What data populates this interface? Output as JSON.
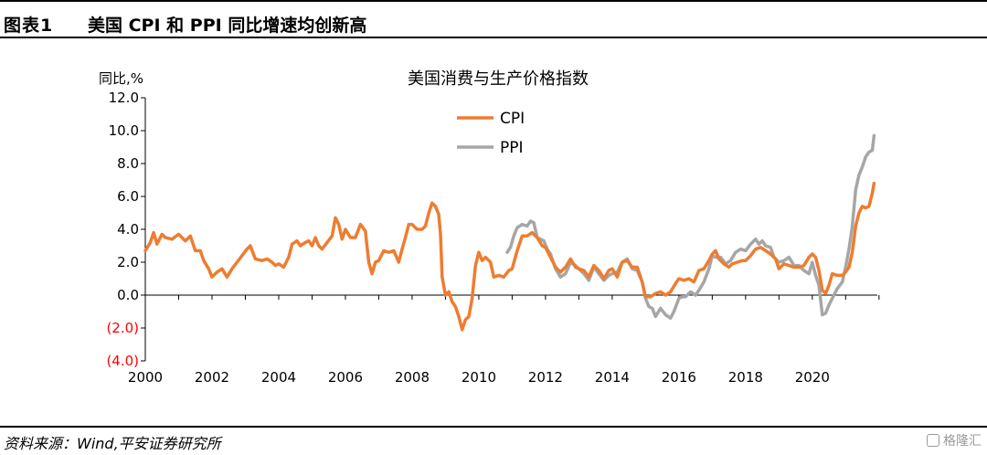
{
  "header": {
    "figure_label": "图表1",
    "title": "美国 CPI 和 PPI 同比增速均创新高"
  },
  "footer": {
    "source": "资料来源：Wind,平安证券研究所",
    "watermark": "格隆汇"
  },
  "colors": {
    "cpi": "#ED7D31",
    "ppi": "#A6A6A6",
    "negative_label": "#FF0000"
  },
  "chart_data": {
    "type": "line",
    "title": "美国消费与生产价格指数",
    "ylabel": "同比,%",
    "xlabel": "",
    "xlim": [
      2000,
      2021.95
    ],
    "ylim": [
      -4,
      12
    ],
    "y_ticks": [
      {
        "value": 12,
        "label": "12.0"
      },
      {
        "value": 10,
        "label": "10.0"
      },
      {
        "value": 8,
        "label": "8.0"
      },
      {
        "value": 6,
        "label": "6.0"
      },
      {
        "value": 4,
        "label": "4.0"
      },
      {
        "value": 2,
        "label": "2.0"
      },
      {
        "value": 0,
        "label": "0.0"
      },
      {
        "value": -2,
        "label": "(2.0)"
      },
      {
        "value": -4,
        "label": "(4.0)"
      }
    ],
    "x_ticks": [
      "2000",
      "2002",
      "2004",
      "2006",
      "2008",
      "2010",
      "2012",
      "2014",
      "2016",
      "2018",
      "2020"
    ],
    "legend_position": "top-center",
    "grid": false,
    "series": [
      {
        "name": "CPI",
        "points": [
          [
            2000.0,
            2.7
          ],
          [
            2000.15,
            3.2
          ],
          [
            2000.25,
            3.8
          ],
          [
            2000.35,
            3.1
          ],
          [
            2000.5,
            3.7
          ],
          [
            2000.6,
            3.5
          ],
          [
            2000.8,
            3.4
          ],
          [
            2001.0,
            3.7
          ],
          [
            2001.2,
            3.3
          ],
          [
            2001.35,
            3.6
          ],
          [
            2001.5,
            2.7
          ],
          [
            2001.65,
            2.7
          ],
          [
            2001.75,
            2.1
          ],
          [
            2001.9,
            1.6
          ],
          [
            2002.0,
            1.1
          ],
          [
            2002.15,
            1.4
          ],
          [
            2002.3,
            1.6
          ],
          [
            2002.45,
            1.1
          ],
          [
            2002.6,
            1.6
          ],
          [
            2002.75,
            2.0
          ],
          [
            2002.9,
            2.4
          ],
          [
            2003.05,
            2.8
          ],
          [
            2003.15,
            3.0
          ],
          [
            2003.3,
            2.2
          ],
          [
            2003.5,
            2.1
          ],
          [
            2003.65,
            2.2
          ],
          [
            2003.8,
            2.0
          ],
          [
            2003.9,
            1.8
          ],
          [
            2004.0,
            1.9
          ],
          [
            2004.15,
            1.7
          ],
          [
            2004.3,
            2.3
          ],
          [
            2004.4,
            3.1
          ],
          [
            2004.55,
            3.3
          ],
          [
            2004.65,
            3.0
          ],
          [
            2004.8,
            3.2
          ],
          [
            2004.9,
            3.3
          ],
          [
            2005.0,
            3.0
          ],
          [
            2005.1,
            3.5
          ],
          [
            2005.2,
            3.0
          ],
          [
            2005.3,
            2.8
          ],
          [
            2005.45,
            3.2
          ],
          [
            2005.6,
            3.6
          ],
          [
            2005.7,
            4.7
          ],
          [
            2005.8,
            4.3
          ],
          [
            2005.9,
            3.4
          ],
          [
            2006.0,
            4.0
          ],
          [
            2006.15,
            3.5
          ],
          [
            2006.3,
            3.5
          ],
          [
            2006.45,
            4.3
          ],
          [
            2006.6,
            3.9
          ],
          [
            2006.7,
            2.0
          ],
          [
            2006.8,
            1.3
          ],
          [
            2006.9,
            2.0
          ],
          [
            2007.0,
            2.1
          ],
          [
            2007.15,
            2.7
          ],
          [
            2007.3,
            2.6
          ],
          [
            2007.45,
            2.7
          ],
          [
            2007.6,
            2.0
          ],
          [
            2007.7,
            2.8
          ],
          [
            2007.8,
            3.5
          ],
          [
            2007.9,
            4.3
          ],
          [
            2008.0,
            4.3
          ],
          [
            2008.15,
            4.0
          ],
          [
            2008.3,
            4.0
          ],
          [
            2008.4,
            4.2
          ],
          [
            2008.5,
            5.0
          ],
          [
            2008.6,
            5.6
          ],
          [
            2008.7,
            5.4
          ],
          [
            2008.8,
            4.9
          ],
          [
            2008.85,
            3.7
          ],
          [
            2008.9,
            1.1
          ],
          [
            2009.0,
            0.0
          ],
          [
            2009.1,
            0.2
          ],
          [
            2009.2,
            -0.4
          ],
          [
            2009.3,
            -0.7
          ],
          [
            2009.4,
            -1.3
          ],
          [
            2009.5,
            -2.1
          ],
          [
            2009.6,
            -1.5
          ],
          [
            2009.7,
            -1.3
          ],
          [
            2009.8,
            -0.2
          ],
          [
            2009.9,
            1.8
          ],
          [
            2010.0,
            2.6
          ],
          [
            2010.1,
            2.1
          ],
          [
            2010.2,
            2.3
          ],
          [
            2010.35,
            2.0
          ],
          [
            2010.45,
            1.1
          ],
          [
            2010.6,
            1.2
          ],
          [
            2010.75,
            1.1
          ],
          [
            2010.9,
            1.5
          ],
          [
            2011.0,
            1.6
          ],
          [
            2011.15,
            2.7
          ],
          [
            2011.3,
            3.6
          ],
          [
            2011.45,
            3.6
          ],
          [
            2011.6,
            3.8
          ],
          [
            2011.75,
            3.5
          ],
          [
            2011.9,
            3.0
          ],
          [
            2012.0,
            2.9
          ],
          [
            2012.15,
            2.3
          ],
          [
            2012.3,
            1.7
          ],
          [
            2012.45,
            1.4
          ],
          [
            2012.6,
            1.7
          ],
          [
            2012.75,
            2.2
          ],
          [
            2012.9,
            1.7
          ],
          [
            2013.0,
            1.6
          ],
          [
            2013.15,
            1.5
          ],
          [
            2013.3,
            1.1
          ],
          [
            2013.45,
            1.8
          ],
          [
            2013.6,
            1.5
          ],
          [
            2013.75,
            1.0
          ],
          [
            2013.9,
            1.5
          ],
          [
            2014.0,
            1.6
          ],
          [
            2014.15,
            1.1
          ],
          [
            2014.3,
            2.0
          ],
          [
            2014.45,
            2.1
          ],
          [
            2014.6,
            1.7
          ],
          [
            2014.75,
            1.7
          ],
          [
            2014.9,
            0.8
          ],
          [
            2015.0,
            -0.1
          ],
          [
            2015.15,
            -0.1
          ],
          [
            2015.3,
            0.1
          ],
          [
            2015.45,
            0.2
          ],
          [
            2015.6,
            0.0
          ],
          [
            2015.75,
            0.2
          ],
          [
            2015.9,
            0.7
          ],
          [
            2016.0,
            1.0
          ],
          [
            2016.15,
            0.9
          ],
          [
            2016.3,
            1.0
          ],
          [
            2016.45,
            0.8
          ],
          [
            2016.6,
            1.5
          ],
          [
            2016.75,
            1.6
          ],
          [
            2016.9,
            2.1
          ],
          [
            2017.0,
            2.5
          ],
          [
            2017.1,
            2.7
          ],
          [
            2017.2,
            2.2
          ],
          [
            2017.35,
            1.9
          ],
          [
            2017.5,
            1.7
          ],
          [
            2017.6,
            1.9
          ],
          [
            2017.75,
            2.0
          ],
          [
            2017.9,
            2.1
          ],
          [
            2018.0,
            2.1
          ],
          [
            2018.15,
            2.4
          ],
          [
            2018.3,
            2.8
          ],
          [
            2018.45,
            2.9
          ],
          [
            2018.6,
            2.7
          ],
          [
            2018.75,
            2.5
          ],
          [
            2018.9,
            2.2
          ],
          [
            2019.0,
            1.6
          ],
          [
            2019.15,
            1.9
          ],
          [
            2019.3,
            1.8
          ],
          [
            2019.45,
            1.7
          ],
          [
            2019.6,
            1.7
          ],
          [
            2019.75,
            1.8
          ],
          [
            2019.9,
            2.3
          ],
          [
            2020.0,
            2.5
          ],
          [
            2020.1,
            2.3
          ],
          [
            2020.2,
            1.5
          ],
          [
            2020.3,
            0.3
          ],
          [
            2020.4,
            0.1
          ],
          [
            2020.5,
            0.6
          ],
          [
            2020.6,
            1.3
          ],
          [
            2020.75,
            1.2
          ],
          [
            2020.9,
            1.2
          ],
          [
            2021.0,
            1.4
          ],
          [
            2021.1,
            1.7
          ],
          [
            2021.2,
            2.6
          ],
          [
            2021.3,
            4.2
          ],
          [
            2021.4,
            5.0
          ],
          [
            2021.5,
            5.4
          ],
          [
            2021.6,
            5.3
          ],
          [
            2021.7,
            5.4
          ],
          [
            2021.8,
            6.2
          ],
          [
            2021.85,
            6.8
          ]
        ]
      },
      {
        "name": "PPI",
        "points": [
          [
            2010.85,
            2.6
          ],
          [
            2010.95,
            2.9
          ],
          [
            2011.05,
            3.6
          ],
          [
            2011.15,
            4.1
          ],
          [
            2011.3,
            4.3
          ],
          [
            2011.45,
            4.2
          ],
          [
            2011.55,
            4.5
          ],
          [
            2011.65,
            4.4
          ],
          [
            2011.75,
            3.5
          ],
          [
            2011.85,
            3.4
          ],
          [
            2011.95,
            3.3
          ],
          [
            2012.05,
            2.8
          ],
          [
            2012.15,
            2.5
          ],
          [
            2012.3,
            1.6
          ],
          [
            2012.45,
            1.1
          ],
          [
            2012.6,
            1.3
          ],
          [
            2012.75,
            2.0
          ],
          [
            2012.9,
            1.8
          ],
          [
            2013.0,
            1.6
          ],
          [
            2013.15,
            1.3
          ],
          [
            2013.3,
            0.9
          ],
          [
            2013.45,
            1.7
          ],
          [
            2013.6,
            1.3
          ],
          [
            2013.75,
            0.9
          ],
          [
            2013.9,
            1.2
          ],
          [
            2014.0,
            1.3
          ],
          [
            2014.15,
            1.4
          ],
          [
            2014.3,
            2.0
          ],
          [
            2014.45,
            2.2
          ],
          [
            2014.6,
            1.6
          ],
          [
            2014.75,
            1.5
          ],
          [
            2014.9,
            0.8
          ],
          [
            2015.0,
            -0.2
          ],
          [
            2015.1,
            -0.7
          ],
          [
            2015.2,
            -0.8
          ],
          [
            2015.3,
            -1.3
          ],
          [
            2015.45,
            -0.8
          ],
          [
            2015.6,
            -1.2
          ],
          [
            2015.75,
            -1.4
          ],
          [
            2015.85,
            -1.0
          ],
          [
            2016.0,
            -0.2
          ],
          [
            2016.1,
            -0.1
          ],
          [
            2016.2,
            -0.1
          ],
          [
            2016.35,
            0.2
          ],
          [
            2016.5,
            0.0
          ],
          [
            2016.6,
            0.3
          ],
          [
            2016.75,
            0.8
          ],
          [
            2016.9,
            1.6
          ],
          [
            2017.0,
            2.4
          ],
          [
            2017.1,
            2.3
          ],
          [
            2017.25,
            2.3
          ],
          [
            2017.4,
            1.9
          ],
          [
            2017.55,
            2.1
          ],
          [
            2017.7,
            2.6
          ],
          [
            2017.85,
            2.8
          ],
          [
            2018.0,
            2.7
          ],
          [
            2018.15,
            3.1
          ],
          [
            2018.3,
            3.4
          ],
          [
            2018.4,
            3.1
          ],
          [
            2018.5,
            3.3
          ],
          [
            2018.6,
            3.0
          ],
          [
            2018.75,
            2.9
          ],
          [
            2018.85,
            2.3
          ],
          [
            2019.0,
            2.0
          ],
          [
            2019.15,
            2.1
          ],
          [
            2019.3,
            2.3
          ],
          [
            2019.45,
            1.8
          ],
          [
            2019.6,
            1.8
          ],
          [
            2019.75,
            1.5
          ],
          [
            2019.9,
            1.3
          ],
          [
            2020.0,
            2.0
          ],
          [
            2020.1,
            1.2
          ],
          [
            2020.2,
            0.6
          ],
          [
            2020.3,
            -1.2
          ],
          [
            2020.4,
            -1.1
          ],
          [
            2020.5,
            -0.6
          ],
          [
            2020.6,
            -0.2
          ],
          [
            2020.75,
            0.4
          ],
          [
            2020.9,
            0.8
          ],
          [
            2021.0,
            1.7
          ],
          [
            2021.1,
            2.8
          ],
          [
            2021.2,
            4.2
          ],
          [
            2021.3,
            6.4
          ],
          [
            2021.4,
            7.3
          ],
          [
            2021.5,
            7.8
          ],
          [
            2021.6,
            8.4
          ],
          [
            2021.7,
            8.7
          ],
          [
            2021.8,
            8.8
          ],
          [
            2021.85,
            9.7
          ]
        ]
      }
    ]
  }
}
